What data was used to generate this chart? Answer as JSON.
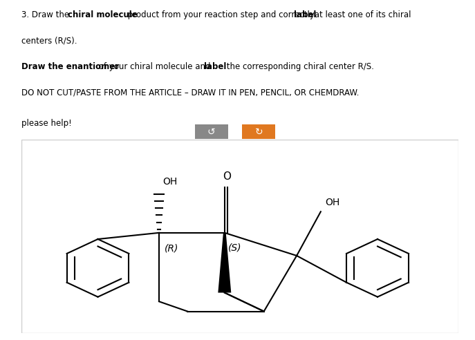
{
  "bg_color": "#ffffff",
  "text_color": "#000000",
  "title_line1": "3. Draw the **chiral molecule** product from your reaction step and correctly **label** at least one of its chiral",
  "title_line2": "centers (R/S).",
  "title_line3_bold": "Draw the enantiomer",
  "title_line3_rest": " of your chiral molecule and **label** the corresponding chiral center R/S.",
  "title_line4": "DO NOT CUT/PASTE FROM THE ARTICLE – DRAW IT IN PEN, PENCIL, OR CHEMDRAW.",
  "please_help": "please help!",
  "button1_color": "#888888",
  "button2_color": "#e07820",
  "box_color": "#f5f5f5",
  "box_border": "#cccccc",
  "R_label": "(R)",
  "S_label": "(S)",
  "OH_left": "OH",
  "OH_right": "OH",
  "O_label": "O",
  "lw": 1.5
}
